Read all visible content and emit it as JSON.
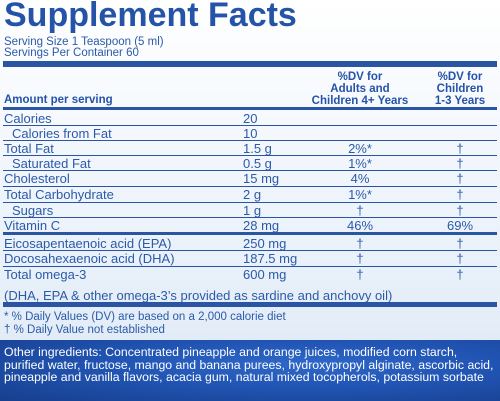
{
  "title": "Supplement Facts",
  "serving_size": "Serving Size 1 Teaspoon (5 ml)",
  "servings_per_container": "Servings Per Container 60",
  "col_adults": [
    "%DV for",
    "Adults and",
    "Children 4+ Years"
  ],
  "col_children": [
    "%DV for",
    "Children",
    "1-3 Years"
  ],
  "amount_header": "Amount per serving",
  "rows": [
    {
      "name": "Calories",
      "amount": "20",
      "dv_adult": "",
      "dv_child": ""
    },
    {
      "name": "Calories from Fat",
      "amount": "10",
      "dv_adult": "",
      "dv_child": ""
    },
    {
      "name": "Total Fat",
      "amount": "1.5 g",
      "dv_adult": "2%*",
      "dv_child": "†"
    },
    {
      "name": "Saturated Fat",
      "amount": "0.5 g",
      "dv_adult": "1%*",
      "dv_child": "†"
    },
    {
      "name": "Cholesterol",
      "amount": "15 mg",
      "dv_adult": "4%",
      "dv_child": "†"
    },
    {
      "name": "Total Carbohydrate",
      "amount": "2 g",
      "dv_adult": "1%*",
      "dv_child": "†"
    },
    {
      "name": "Sugars",
      "amount": "1 g",
      "dv_adult": "†",
      "dv_child": "†"
    },
    {
      "name": "Vitamin C",
      "amount": "28 mg",
      "dv_adult": "46%",
      "dv_child": "69%"
    },
    {
      "name": "Eicosapentaenoic acid (EPA)",
      "amount": "250 mg",
      "dv_adult": "†",
      "dv_child": "†"
    },
    {
      "name": "Docosahexaenoic acid (DHA)",
      "amount": "187.5 mg",
      "dv_adult": "†",
      "dv_child": "†"
    },
    {
      "name": "Total omega-3",
      "amount": "600 mg",
      "dv_adult": "†",
      "dv_child": "†"
    }
  ],
  "omega_note": "(DHA, EPA & other omega-3’s provided as sardine and anchovy oil)",
  "footnote_1": "* % Daily Values (DV) are based on a 2,000 calorie diet",
  "footnote_2": "† % Daily Value not established",
  "ingredients": "Other ingredients: Concentrated pineapple and orange juices, modified corn starch, purified water, fructose, mango and banana purees, hydroxypropyl alginate, ascorbic acid, pineapple and vanilla flavors, acacia gum, natural mixed tocopherols, potassium sorbate",
  "colors": {
    "text": "#2453a8",
    "rules": "#2a55a2",
    "ingredients_bg": "#2154b3"
  }
}
